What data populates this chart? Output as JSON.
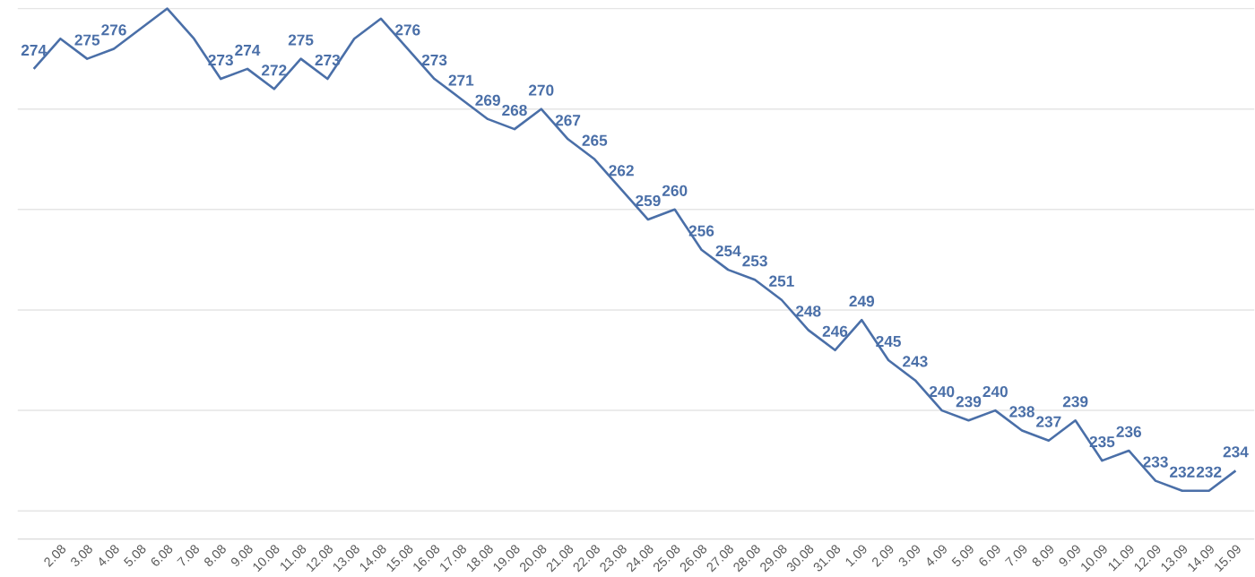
{
  "chart_data": {
    "type": "line",
    "color": "#4a6fa8",
    "categories": [
      null,
      "2.08",
      "3.08",
      "4.08",
      "5.08",
      "6.08",
      "7.08",
      "8.08",
      "9.08",
      "10.08",
      "11.08",
      "12.08",
      "13.08",
      "14.08",
      "15.08",
      "16.08",
      "17.08",
      "18.08",
      "19.08",
      "20.08",
      "21.08",
      "22.08",
      "23.08",
      "24.08",
      "25.08",
      "26.08",
      "27.08",
      "28.08",
      "29.08",
      "30.08",
      "31.08",
      "1.09",
      "2.09",
      "3.09",
      "4.09",
      "5.09",
      "6.09",
      "7.09",
      "8.09",
      "9.09",
      "10.09",
      "11.09",
      "12.09",
      "13.09",
      "14.09",
      "15.09"
    ],
    "values": [
      274,
      277,
      275,
      276,
      278,
      280,
      277,
      273,
      274,
      272,
      275,
      273,
      277,
      279,
      276,
      273,
      271,
      269,
      268,
      270,
      267,
      265,
      262,
      259,
      260,
      256,
      254,
      253,
      251,
      248,
      246,
      249,
      245,
      243,
      240,
      239,
      240,
      238,
      237,
      239,
      235,
      236,
      233,
      232,
      232,
      234
    ],
    "value_labels": [
      "274",
      null,
      "275",
      "276",
      null,
      null,
      null,
      "273",
      "274",
      "272",
      "275",
      "273",
      null,
      null,
      "276",
      "273",
      "271",
      "269",
      "268",
      "270",
      "267",
      "265",
      "262",
      "259",
      "260",
      "256",
      "254",
      "253",
      "251",
      "248",
      "246",
      "249",
      "245",
      "243",
      "240",
      "239",
      "240",
      "238",
      "237",
      "239",
      "235",
      "236",
      "233",
      "232",
      "232",
      "234"
    ],
    "grid": "y",
    "tick_labels": "x"
  }
}
